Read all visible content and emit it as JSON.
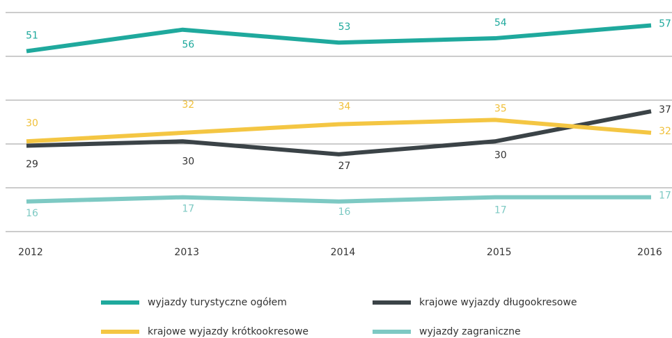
{
  "chart_data": {
    "type": "line",
    "categories": [
      "2012",
      "2013",
      "2014",
      "2015",
      "2016"
    ],
    "ylim": [
      9,
      60
    ],
    "series": [
      {
        "name": "wyjazdy turystyczne ogółem",
        "color": "#1fa99d",
        "values": [
          51,
          56,
          53,
          54,
          57
        ]
      },
      {
        "name": "krajowe wyjazdy długookresowe",
        "color": "#3b4347",
        "values": [
          29,
          30,
          27,
          30,
          37
        ]
      },
      {
        "name": "krajowe wyjazdy krótkookresowe",
        "color": "#f4c643",
        "values": [
          30,
          32,
          34,
          35,
          32
        ]
      },
      {
        "name": "wyjazdy zagraniczne",
        "color": "#7dc9c3",
        "values": [
          16,
          17,
          16,
          17,
          17
        ]
      }
    ]
  }
}
